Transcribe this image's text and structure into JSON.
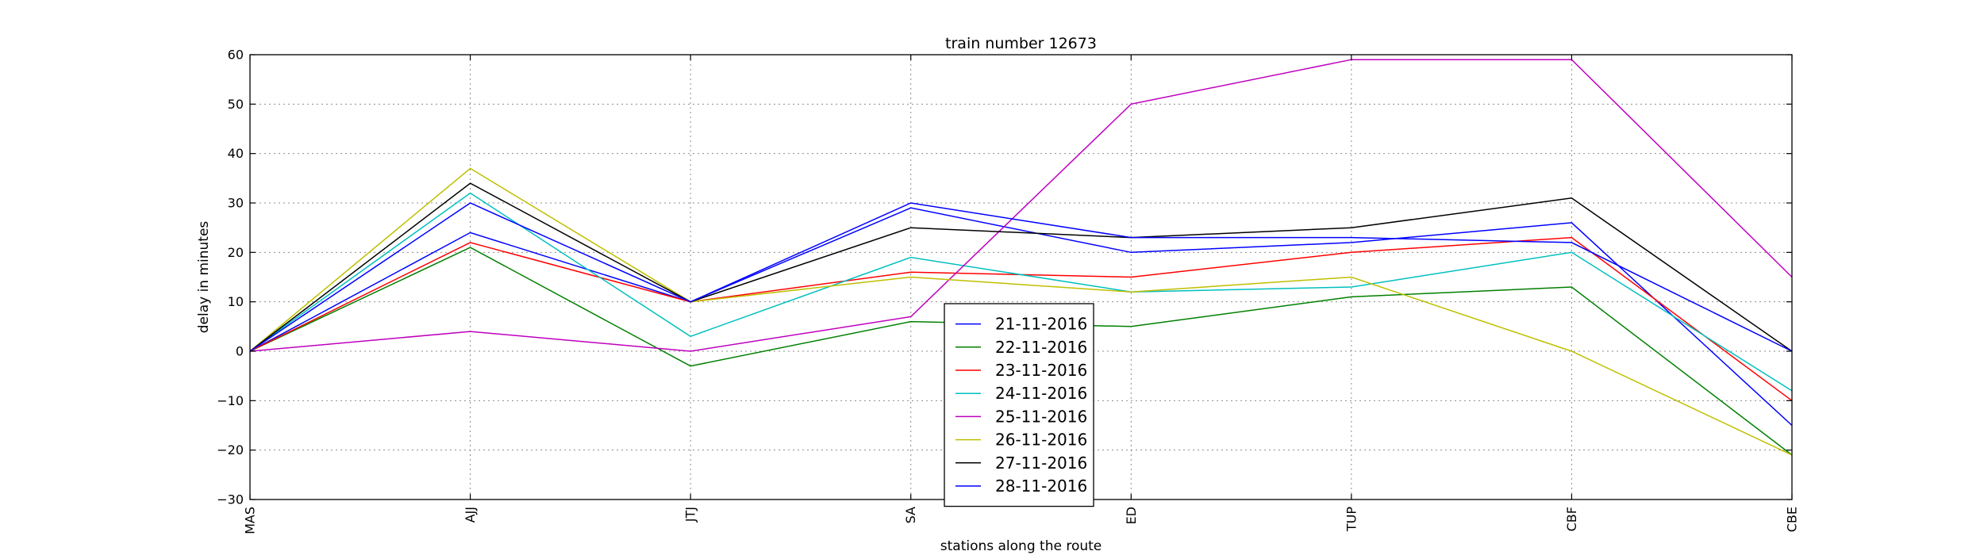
{
  "chart_data": {
    "type": "line",
    "title": "train number 12673",
    "xlabel": "stations along the route",
    "ylabel": "delay in minutes",
    "categories": [
      "MAS",
      "AJJ",
      "JTJ",
      "SA",
      "ED",
      "TUP",
      "CBF",
      "CBE"
    ],
    "ylim": [
      -30,
      60
    ],
    "yticks": [
      -30,
      -20,
      -10,
      0,
      10,
      20,
      30,
      40,
      50,
      60
    ],
    "grid": true,
    "legend_position": "lower-center",
    "series": [
      {
        "name": "21-11-2016",
        "color": "#0000ff",
        "values": [
          0,
          24,
          10,
          29,
          20,
          22,
          26,
          -15
        ]
      },
      {
        "name": "22-11-2016",
        "color": "#008000",
        "values": [
          0,
          21,
          -3,
          6,
          5,
          11,
          13,
          -21
        ]
      },
      {
        "name": "23-11-2016",
        "color": "#ff0000",
        "values": [
          0,
          22,
          10,
          16,
          15,
          20,
          23,
          -10
        ]
      },
      {
        "name": "24-11-2016",
        "color": "#00bfbf",
        "values": [
          0,
          32,
          3,
          19,
          12,
          13,
          20,
          -8
        ]
      },
      {
        "name": "25-11-2016",
        "color": "#bf00bf",
        "values": [
          0,
          4,
          0,
          7,
          50,
          59,
          59,
          15
        ]
      },
      {
        "name": "26-11-2016",
        "color": "#bfbf00",
        "values": [
          0,
          37,
          10,
          15,
          12,
          15,
          0,
          -21
        ]
      },
      {
        "name": "27-11-2016",
        "color": "#000000",
        "values": [
          0,
          34,
          10,
          25,
          23,
          25,
          31,
          0
        ]
      },
      {
        "name": "28-11-2016",
        "color": "#0000ff",
        "values": [
          0,
          30,
          10,
          30,
          23,
          23,
          22,
          0
        ]
      }
    ]
  }
}
